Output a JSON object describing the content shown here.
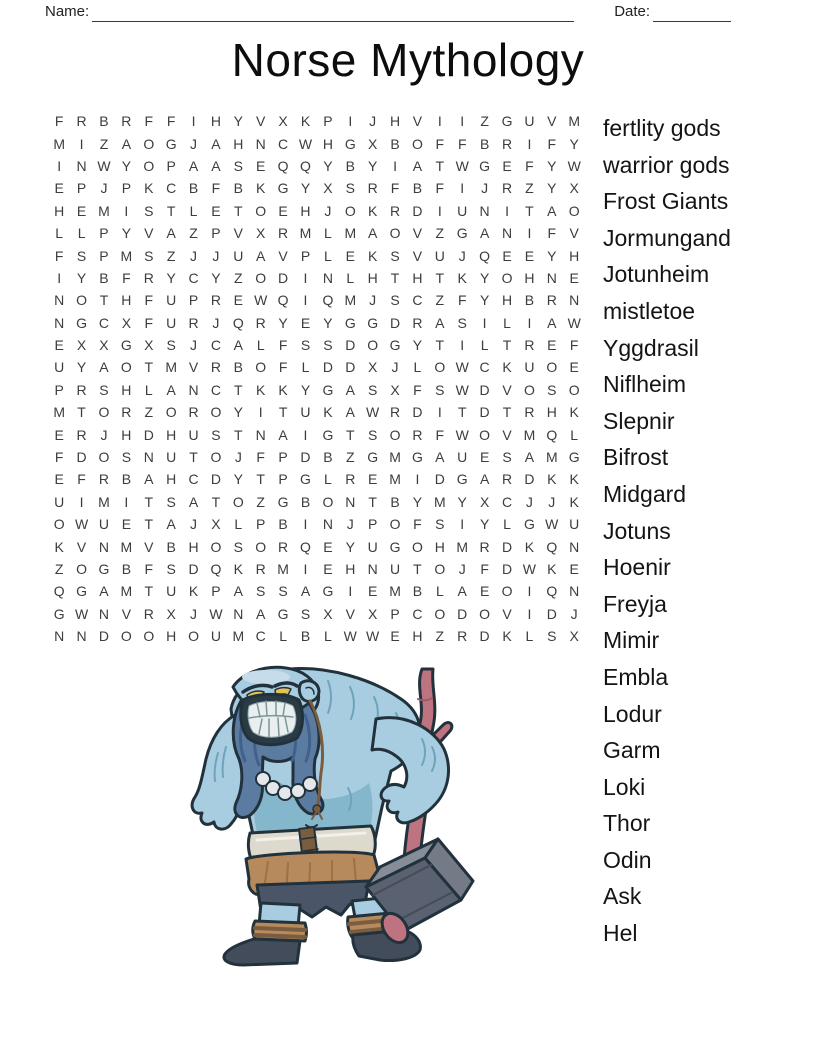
{
  "header": {
    "name_label": "Name:",
    "date_label": "Date:"
  },
  "title": "Norse Mythology",
  "grid": {
    "rows": 24,
    "cols": 24,
    "letters": [
      "FRBRFFIHYVXKPIJHVIIZGUVM",
      "MIZAOGJAHNCWHGXBOFFBRIFY",
      "INWYOPAASEQQYBYIATWGEFYW",
      "EPJPKCBFBKGYXSRFBFIJRZYX",
      "HEMISTLETOEHJOKRDIUNITAO",
      "LLPYVAZPVXRMLMAOVZGANIFV",
      "FSPMSZJJUAVPLEKSVUJQEEYH",
      "IYBFRYCYZODINLHTHTKYOHNE",
      "NOTHFUPREWQIQMJSCZFYHBRN",
      "NGCXFURJQRYEYGGDRASILIAW",
      "EXXGXSJCALFSSDOGYTILTREF",
      "UYAOTMVRBOFLDDXJLOWCKUOE",
      "PRSHLANCTKKYGASXFSWDVOSO",
      "MTORZOROYITUKAWRDITDTRHK",
      "ERJHDHUSTNAIGTSORFWOVMQL",
      "FDOSNUTOJFPDBZGMGAUESAMG",
      "EFRBAHCDYTPGLREMIDGARDKK",
      "UIMITSATOZGBONTBYMYXCJJK",
      "OWUETAJXLPBINJPOFSIYLGWU",
      "KVNMVBHOSORQEYUGOHMRDKQN",
      "ZOGBFSDQKRMIEHNUTOJFDWKE",
      "QGAMTUKPASSAGIEMBLAEOIQN",
      "GWNVRXJWNAGSXVXPCODOVIDJ",
      "NNDOOHOUMCLBLWWEHZRDKLSX"
    ]
  },
  "word_list": [
    "fertlity gods",
    "warrior gods",
    "Frost Giants",
    "Jormungand",
    "Jotunheim",
    "mistletoe",
    "Yggdrasil",
    "Niflheim",
    "Slepnir",
    "Bifrost",
    "Midgard",
    "Jotuns",
    "Hoenir",
    "Freyja",
    "Mimir",
    "Embla",
    "Lodur",
    "Garm",
    "Loki",
    "Thor",
    "Odin",
    "Ask",
    "Hel"
  ],
  "illustration": {
    "label": "angry blue troll holding a war hammer",
    "palette": {
      "skin_light": "#a9cde0",
      "skin_mid": "#85b7cc",
      "skin_shadow": "#6fa3ba",
      "highlight": "#c6dcea",
      "outline": "#22323c",
      "beard": "#5b7ba0",
      "beard_dark": "#42608c",
      "mouth_dark": "#2b3b45",
      "teeth": "#e9efee",
      "eye": "#e3c152",
      "belt": "#ddd9cd",
      "belt_highlight": "#f2f0e8",
      "strap": "#7a5c3e",
      "fur": "#b68a5c",
      "fur_dark": "#9c7144",
      "kilt": "#4b5568",
      "boot": "#434c5a",
      "handle": "#bd7380",
      "handle_dark": "#9d5a68",
      "hammer": "#5a6170",
      "hammer_side": "#747b87",
      "hammer_light": "#878d98",
      "hammer_line": "#454c58"
    }
  }
}
